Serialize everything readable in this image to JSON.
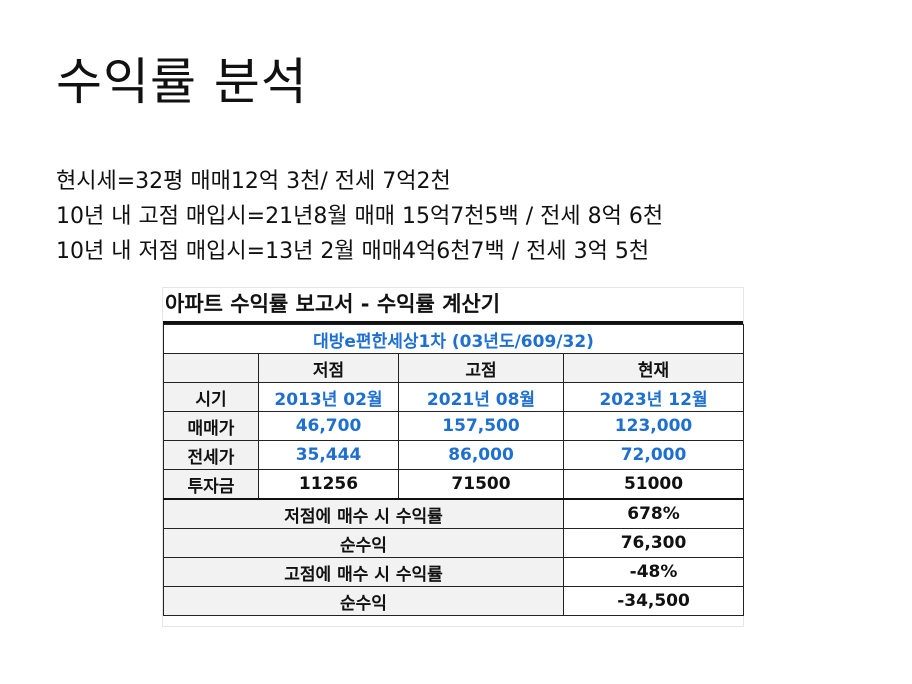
{
  "title": "수익률 분석",
  "lines": [
    "현시세=32평 매매12억 3천/ 전세 7억2천",
    "10년 내 고점 매입시=21년8월 매매 15억7천5백 / 전세 8억 6천",
    "10년 내 저점 매입시=13년 2월 매매4억6천7백 /  전세 3억 5천"
  ],
  "report": {
    "title": "아파트 수익률 보고서 - 수익률 계산기",
    "complex": "대방e편한세상1차 (03년도/609/32)",
    "headers": [
      "저점",
      "고점",
      "현재"
    ],
    "rows": [
      {
        "label": "시기",
        "values": [
          "2013년 02월",
          "2021년 08월",
          "2023년 12월"
        ]
      },
      {
        "label": "매매가",
        "values": [
          "46,700",
          "157,500",
          "123,000"
        ]
      },
      {
        "label": "전세가",
        "values": [
          "35,444",
          "86,000",
          "72,000"
        ]
      },
      {
        "label": "투자금",
        "values": [
          "11256",
          "71500",
          "51000"
        ]
      }
    ],
    "summary": [
      {
        "label": "저점에 매수 시 수익률",
        "value": "678%"
      },
      {
        "label": "순수익",
        "value": "76,300"
      },
      {
        "label": "고점에 매수 시 수익률",
        "value": "-48%"
      },
      {
        "label": "순수익",
        "value": "-34,500"
      }
    ]
  }
}
